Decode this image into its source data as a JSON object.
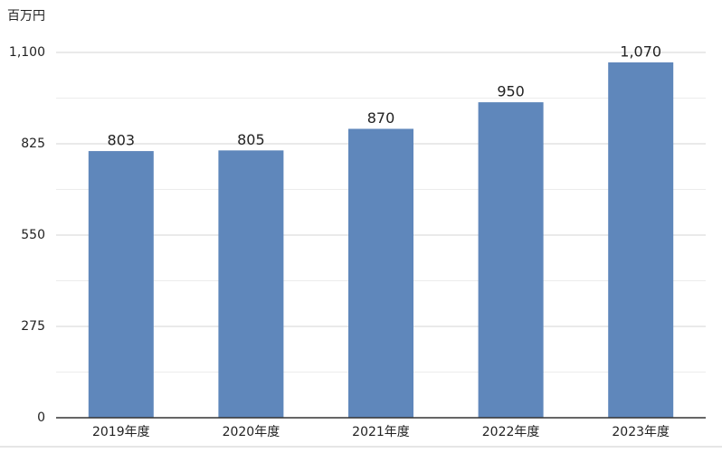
{
  "chart_data": {
    "type": "bar",
    "unit_label": "百万円",
    "categories": [
      "2019年度",
      "2020年度",
      "2021年度",
      "2022年度",
      "2023年度"
    ],
    "values": [
      803,
      805,
      870,
      950,
      1070
    ],
    "value_labels": [
      "803",
      "805",
      "870",
      "950",
      "1,070"
    ],
    "color": "#5f87bb",
    "ylim": [
      0,
      1100
    ],
    "yticks": [
      0,
      275,
      550,
      825,
      {
        "value": 1100,
        "label": "1,100"
      }
    ],
    "minor_yticks": [
      137.5,
      412.5,
      687.5,
      962.5
    ],
    "grid": true
  }
}
